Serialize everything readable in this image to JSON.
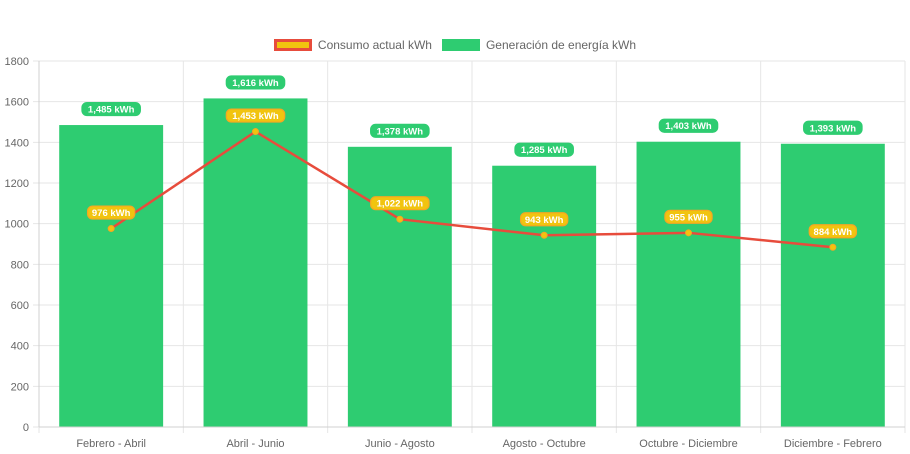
{
  "legend": {
    "consumo_label": "Consumo actual kWh",
    "generacion_label": "Generación de energía kWh"
  },
  "colors": {
    "bar_fill": "#2ecc71",
    "line_stroke": "#e74c3c",
    "point_fill": "#f1c40f",
    "label_orange": "#f5a623",
    "grid": "#e6e6e6",
    "axis_text": "#666666"
  },
  "chart_data": {
    "type": "bar",
    "categories": [
      "Febrero - Abril",
      "Abril - Junio",
      "Junio - Agosto",
      "Agosto - Octubre",
      "Octubre - Diciembre",
      "Diciembre - Febrero"
    ],
    "series": [
      {
        "name": "Generación de energía kWh",
        "type": "bar",
        "values": [
          1485,
          1616,
          1378,
          1285,
          1403,
          1393
        ],
        "labels": [
          "1,485 kWh",
          "1,616 kWh",
          "1,378 kWh",
          "1,285 kWh",
          "1,403 kWh",
          "1,393 kWh"
        ]
      },
      {
        "name": "Consumo actual kWh",
        "type": "line",
        "values": [
          976,
          1453,
          1022,
          943,
          955,
          884
        ],
        "labels": [
          "976 kWh",
          "1,453 kWh",
          "1,022 kWh",
          "943 kWh",
          "955 kWh",
          "884 kWh"
        ]
      }
    ],
    "yticks": [
      "0",
      "200",
      "400",
      "600",
      "800",
      "1000",
      "1200",
      "1400",
      "1600",
      "1800"
    ],
    "ylim": [
      0,
      1800
    ],
    "grid": true,
    "legend_position": "top-center"
  }
}
